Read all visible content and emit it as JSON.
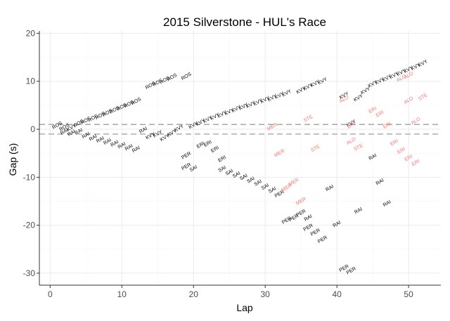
{
  "chart_data": {
    "type": "scatter",
    "title": "2015 Silverstone - HUL's Race",
    "xlabel": "Lap",
    "ylabel": "Gap (s)",
    "xlim": [
      -1.5,
      54.5
    ],
    "ylim": [
      -32.5,
      20.5
    ],
    "xticks": [
      0,
      10,
      20,
      30,
      40,
      50
    ],
    "yticks": [
      20,
      10,
      0,
      -10,
      -20,
      -30
    ],
    "grid": true,
    "reference_lines": [
      1,
      -1
    ],
    "series": [
      {
        "name": "black",
        "color": "#000000",
        "points": [
          {
            "x": 1,
            "y": 0.8,
            "label": "ROS"
          },
          {
            "x": 2,
            "y": -0.5,
            "label": "RAI"
          },
          {
            "x": 2,
            "y": 0.4,
            "label": "ROS"
          },
          {
            "x": 3,
            "y": -0.8,
            "label": "RAI"
          },
          {
            "x": 3,
            "y": 0.3,
            "label": "KVY"
          },
          {
            "x": 4,
            "y": 1.2,
            "label": "ROS"
          },
          {
            "x": 5,
            "y": 1.8,
            "label": "ROS"
          },
          {
            "x": 6,
            "y": 2.3,
            "label": "ROS"
          },
          {
            "x": 7,
            "y": 2.8,
            "label": "ROS"
          },
          {
            "x": 8,
            "y": 3.4,
            "label": "ROS"
          },
          {
            "x": 9,
            "y": 4.0,
            "label": "ROS"
          },
          {
            "x": 10,
            "y": 4.6,
            "label": "ROS"
          },
          {
            "x": 11,
            "y": 5.2,
            "label": "ROS"
          },
          {
            "x": 12,
            "y": 5.8,
            "label": "ROS"
          },
          {
            "x": 14,
            "y": 9.1,
            "label": "ROS"
          },
          {
            "x": 15,
            "y": 9.7,
            "label": "ROS"
          },
          {
            "x": 16,
            "y": 10.2,
            "label": "ROS"
          },
          {
            "x": 17,
            "y": 10.8,
            "label": "ROS"
          },
          {
            "x": 19,
            "y": 11.0,
            "label": "ROS"
          },
          {
            "x": 4,
            "y": -0.5,
            "label": "RAI"
          },
          {
            "x": 5,
            "y": -1.3,
            "label": "RAI"
          },
          {
            "x": 6,
            "y": -1.8,
            "label": "RAI"
          },
          {
            "x": 7,
            "y": -2.2,
            "label": "RAI"
          },
          {
            "x": 8,
            "y": -2.6,
            "label": "RAI"
          },
          {
            "x": 9,
            "y": -3.0,
            "label": "RAI"
          },
          {
            "x": 10,
            "y": -3.4,
            "label": "RAI"
          },
          {
            "x": 11,
            "y": -3.8,
            "label": "RAI"
          },
          {
            "x": 12,
            "y": -4.2,
            "label": "RAI"
          },
          {
            "x": 13,
            "y": -0.2,
            "label": "RAI"
          },
          {
            "x": 14,
            "y": -1.4,
            "label": "KVY"
          },
          {
            "x": 15,
            "y": -1.0,
            "label": "KVY"
          },
          {
            "x": 16,
            "y": -1.8,
            "label": "KVY"
          },
          {
            "x": 17,
            "y": -0.8,
            "label": "KVY"
          },
          {
            "x": 18,
            "y": 0.2,
            "label": "KVY"
          },
          {
            "x": 20,
            "y": 0.8,
            "label": "KVY"
          },
          {
            "x": 21,
            "y": 1.4,
            "label": "KVY"
          },
          {
            "x": 22,
            "y": 2.0,
            "label": "KVY"
          },
          {
            "x": 23,
            "y": 2.6,
            "label": "KVY"
          },
          {
            "x": 24,
            "y": 3.1,
            "label": "KVY"
          },
          {
            "x": 25,
            "y": 3.6,
            "label": "KVY"
          },
          {
            "x": 26,
            "y": 4.2,
            "label": "KVY"
          },
          {
            "x": 27,
            "y": 4.7,
            "label": "KVY"
          },
          {
            "x": 28,
            "y": 5.1,
            "label": "KVY"
          },
          {
            "x": 29,
            "y": 5.6,
            "label": "KVY"
          },
          {
            "x": 30,
            "y": 6.1,
            "label": "KVY"
          },
          {
            "x": 31,
            "y": 6.5,
            "label": "KVY"
          },
          {
            "x": 32,
            "y": 7.0,
            "label": "KVY"
          },
          {
            "x": 33,
            "y": 7.5,
            "label": "KVY"
          },
          {
            "x": 35,
            "y": 8.1,
            "label": "KVY"
          },
          {
            "x": 36,
            "y": 8.8,
            "label": "KVY"
          },
          {
            "x": 37,
            "y": 9.5,
            "label": "KVY"
          },
          {
            "x": 38,
            "y": 10.0,
            "label": "KVY"
          },
          {
            "x": 42,
            "y": 1.2,
            "label": "KVY"
          },
          {
            "x": 44,
            "y": 8.0,
            "label": "KVY"
          },
          {
            "x": 45,
            "y": 9.4,
            "label": "KVY"
          },
          {
            "x": 46,
            "y": 10.0,
            "label": "KVY"
          },
          {
            "x": 47,
            "y": 10.6,
            "label": "KVY"
          },
          {
            "x": 48,
            "y": 11.2,
            "label": "KVY"
          },
          {
            "x": 49,
            "y": 11.8,
            "label": "KVY"
          },
          {
            "x": 50,
            "y": 12.4,
            "label": "KVY"
          },
          {
            "x": 51,
            "y": 13.0,
            "label": "KVY"
          },
          {
            "x": 52,
            "y": 13.7,
            "label": "KVY"
          },
          {
            "x": 19,
            "y": -5.5,
            "label": "PER"
          },
          {
            "x": 19,
            "y": -7.8,
            "label": "PER"
          },
          {
            "x": 20,
            "y": -8.2,
            "label": "SAI"
          },
          {
            "x": 21,
            "y": -3.3,
            "label": "ERI"
          },
          {
            "x": 22,
            "y": -3.0,
            "label": "ERI"
          },
          {
            "x": 23,
            "y": -4.2,
            "label": "ERI"
          },
          {
            "x": 24,
            "y": -6.2,
            "label": "ERI"
          },
          {
            "x": 24,
            "y": -8.3,
            "label": "SAI"
          },
          {
            "x": 25,
            "y": -9.0,
            "label": "SAI"
          },
          {
            "x": 26,
            "y": -9.5,
            "label": "SAI"
          },
          {
            "x": 27,
            "y": -10.0,
            "label": "SAI"
          },
          {
            "x": 28,
            "y": -10.6,
            "label": "SAI"
          },
          {
            "x": 29,
            "y": -11.2,
            "label": "SAI"
          },
          {
            "x": 30,
            "y": -12.0,
            "label": "SAI"
          },
          {
            "x": 31,
            "y": -12.7,
            "label": "SAI"
          },
          {
            "x": 32,
            "y": -13.5,
            "label": "PER"
          },
          {
            "x": 33,
            "y": -19.0,
            "label": "PER"
          },
          {
            "x": 34,
            "y": -18.5,
            "label": "PER"
          },
          {
            "x": 35,
            "y": -17.5,
            "label": "PER"
          },
          {
            "x": 36,
            "y": -18.5,
            "label": "RAI"
          },
          {
            "x": 36,
            "y": -20.5,
            "label": "PER"
          },
          {
            "x": 37,
            "y": -21.5,
            "label": "PER"
          },
          {
            "x": 38,
            "y": -23.0,
            "label": "PER"
          },
          {
            "x": 40,
            "y": -19.8,
            "label": "RAI"
          },
          {
            "x": 41,
            "y": -29.0,
            "label": "PER"
          },
          {
            "x": 42,
            "y": -29.5,
            "label": "PER"
          },
          {
            "x": 39,
            "y": -12.3,
            "label": "RAI"
          },
          {
            "x": 41,
            "y": 7.0,
            "label": "KVY"
          },
          {
            "x": 43,
            "y": 6.5,
            "label": "KVY"
          },
          {
            "x": 43,
            "y": -17.0,
            "label": "RAI"
          },
          {
            "x": 45,
            "y": -5.8,
            "label": "RAI"
          },
          {
            "x": 46,
            "y": -11.0,
            "label": "RAI"
          },
          {
            "x": 47,
            "y": -15.5,
            "label": "RAI"
          }
        ]
      },
      {
        "name": "red",
        "color": "#f8766d",
        "points": [
          {
            "x": 31,
            "y": 0.5,
            "label": "MER"
          },
          {
            "x": 32,
            "y": -5.0,
            "label": "MER"
          },
          {
            "x": 33,
            "y": -12.2,
            "label": "MER"
          },
          {
            "x": 34,
            "y": -11.0,
            "label": "MER"
          },
          {
            "x": 35,
            "y": -15.0,
            "label": "MER"
          },
          {
            "x": 36,
            "y": 2.2,
            "label": "STE"
          },
          {
            "x": 37,
            "y": -4.0,
            "label": "STE"
          },
          {
            "x": 42,
            "y": -2.5,
            "label": "ALO"
          },
          {
            "x": 42,
            "y": 0.8,
            "label": "ERI"
          },
          {
            "x": 41,
            "y": 6.2,
            "label": "ALO"
          },
          {
            "x": 43,
            "y": -3.8,
            "label": "STE"
          },
          {
            "x": 45,
            "y": 4.0,
            "label": "ERI"
          },
          {
            "x": 46,
            "y": 3.2,
            "label": "ERI"
          },
          {
            "x": 47,
            "y": 0.8,
            "label": "ERI"
          },
          {
            "x": 48,
            "y": -2.8,
            "label": "ERI"
          },
          {
            "x": 49,
            "y": -4.5,
            "label": "ERI"
          },
          {
            "x": 50,
            "y": -6.0,
            "label": "ERI"
          },
          {
            "x": 51,
            "y": -7.0,
            "label": "ERI"
          },
          {
            "x": 50,
            "y": 6.0,
            "label": "ALO"
          },
          {
            "x": 51,
            "y": 1.7,
            "label": "ALO"
          },
          {
            "x": 52,
            "y": 6.7,
            "label": "STE"
          },
          {
            "x": 49,
            "y": 10.6,
            "label": "ALO"
          },
          {
            "x": 50,
            "y": 11.2,
            "label": "ALO"
          }
        ]
      }
    ]
  }
}
